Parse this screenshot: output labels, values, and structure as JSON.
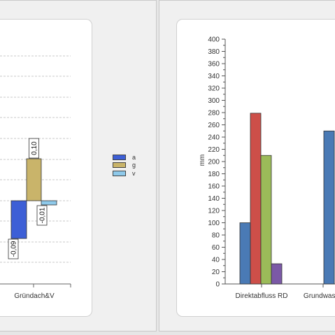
{
  "chart_data": [
    {
      "type": "bar",
      "categories": [
        "Gründach&V"
      ],
      "series": [
        {
          "name": "a",
          "values": [
            -0.09
          ],
          "labels": [
            "-0,09"
          ],
          "color": "#3d5fd6"
        },
        {
          "name": "g",
          "values": [
            0.1
          ],
          "labels": [
            "0,10"
          ],
          "color": "#c9b46a"
        },
        {
          "name": "v",
          "values": [
            -0.01
          ],
          "labels": [
            "-0,01"
          ],
          "color": "#8ec9ea"
        }
      ],
      "ylim": [
        -0.13,
        0.24
      ],
      "grid": true,
      "legend": "right"
    },
    {
      "type": "bar",
      "categories": [
        "Direktabfluss RD",
        "Grundwasse"
      ],
      "series": [
        {
          "values": [
            100,
            null
          ],
          "color": "#4a7ab5"
        },
        {
          "values": [
            279,
            null
          ],
          "color": "#cd4f49"
        },
        {
          "values": [
            210,
            null
          ],
          "color": "#9bbb59"
        },
        {
          "values": [
            33,
            null
          ],
          "color": "#7b59a6"
        },
        {
          "values": [
            null,
            250
          ],
          "color": "#4a7ab5"
        }
      ],
      "ylabel": "mm",
      "ylim": [
        0,
        400
      ],
      "yticks": [
        "0",
        "10",
        "20",
        "30",
        "40",
        "50",
        "60",
        "70",
        "80",
        "90",
        "100",
        "110",
        "120",
        "130",
        "140",
        "150",
        "160",
        "170",
        "180",
        "190",
        "200",
        "210",
        "220",
        "230",
        "240",
        "250",
        "260",
        "270",
        "280",
        "290",
        "300",
        "310",
        "320",
        "330",
        "340",
        "350",
        "360",
        "370",
        "380",
        "390",
        "400"
      ],
      "grid": false
    }
  ],
  "legend": {
    "items": [
      {
        "label": "a",
        "color": "#3d5fd6"
      },
      {
        "label": "g",
        "color": "#c9b46a"
      },
      {
        "label": "v",
        "color": "#8ec9ea"
      }
    ]
  }
}
